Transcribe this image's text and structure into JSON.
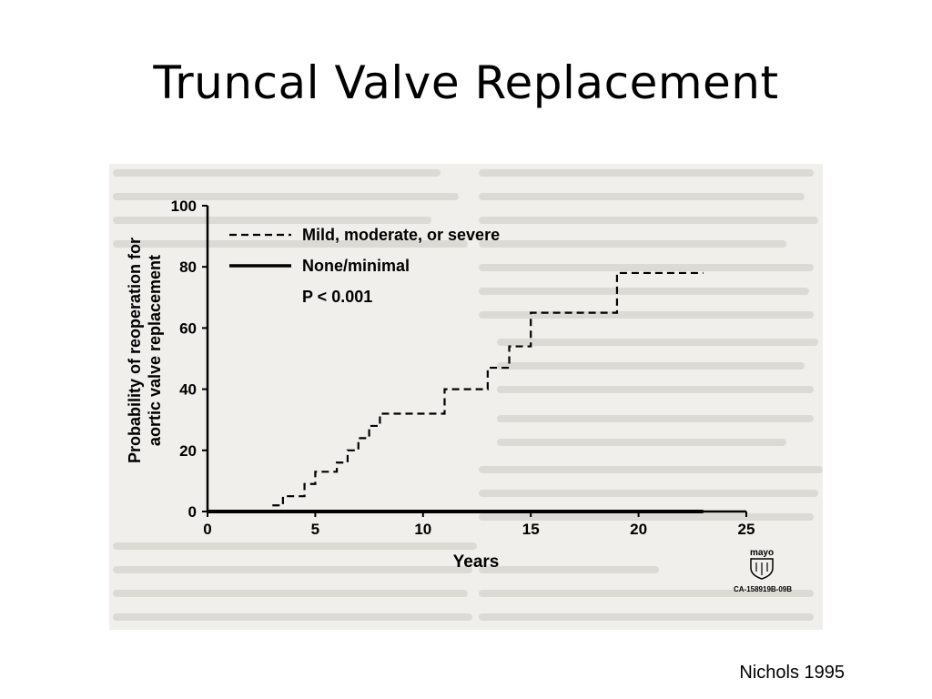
{
  "slide": {
    "title": "Truncal Valve Replacement",
    "citation": "Nichols 1995"
  },
  "figure": {
    "logo_text": "mayo",
    "figure_id": "CA-158919B-09B",
    "background_color": "#f0efec",
    "line_color": "#000000"
  },
  "chart_data": {
    "type": "line",
    "step": true,
    "title": "",
    "xlabel": "Years",
    "ylabel_lines": [
      "Probability of reoperation for",
      "aortic valve replacement"
    ],
    "xlim": [
      0,
      25
    ],
    "ylim": [
      0,
      100
    ],
    "x_ticks": [
      0,
      5,
      10,
      15,
      20,
      25
    ],
    "y_ticks": [
      0,
      20,
      40,
      60,
      80,
      100
    ],
    "grid": false,
    "legend_position": "top-left",
    "annotation": "P < 0.001",
    "series": [
      {
        "name": "Mild, moderate, or severe",
        "style": "dashed",
        "x": [
          0,
          3,
          3.5,
          4.5,
          5,
          6,
          6.5,
          7,
          7.5,
          8,
          10,
          11,
          13,
          14,
          15,
          19,
          23
        ],
        "y": [
          0,
          2,
          5,
          9,
          13,
          16,
          20,
          24,
          28,
          32,
          32,
          40,
          47,
          54,
          65,
          78,
          78
        ]
      },
      {
        "name": "None/minimal",
        "style": "solid",
        "x": [
          0,
          23
        ],
        "y": [
          0,
          0
        ]
      }
    ]
  }
}
